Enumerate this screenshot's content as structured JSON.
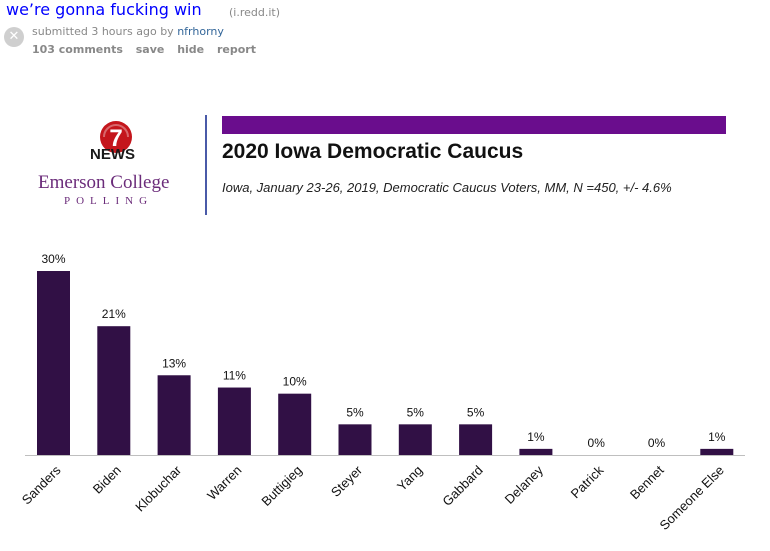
{
  "post": {
    "title": "we’re gonna fucking win",
    "domain": "(i.redd.it)",
    "tagline_prefix": "submitted 3 hours ago by",
    "author": "nfrhorny",
    "buttons": [
      "103 comments",
      "save",
      "hide",
      "report"
    ],
    "remove_icon": "close-x-icon"
  },
  "image": {
    "news_logo": "7",
    "news_word": "NEWS",
    "college": "Emerson College",
    "polling": "POLLING",
    "accent_color": "#6a0d8d",
    "bar_color": "#311045"
  },
  "chart_data": {
    "type": "bar",
    "title": "2020 Iowa Democratic Caucus",
    "subtitle": "Iowa, January 23-26, 2019, Democratic Caucus Voters, MM, N =450, +/- 4.6%",
    "categories": [
      "Sanders",
      "Biden",
      "Klobuchar",
      "Warren",
      "Buttigieg",
      "Steyer",
      "Yang",
      "Gabbard",
      "Delaney",
      "Patrick",
      "Bennet",
      "Someone Else"
    ],
    "values": [
      30,
      21,
      13,
      11,
      10,
      5,
      5,
      5,
      1,
      0,
      0,
      1
    ],
    "data_labels": [
      "30%",
      "21%",
      "13%",
      "11%",
      "10%",
      "5%",
      "5%",
      "5%",
      "1%",
      "0%",
      "0%",
      "1%"
    ],
    "ylim": [
      0,
      30
    ],
    "grid": false,
    "legend": "none"
  }
}
